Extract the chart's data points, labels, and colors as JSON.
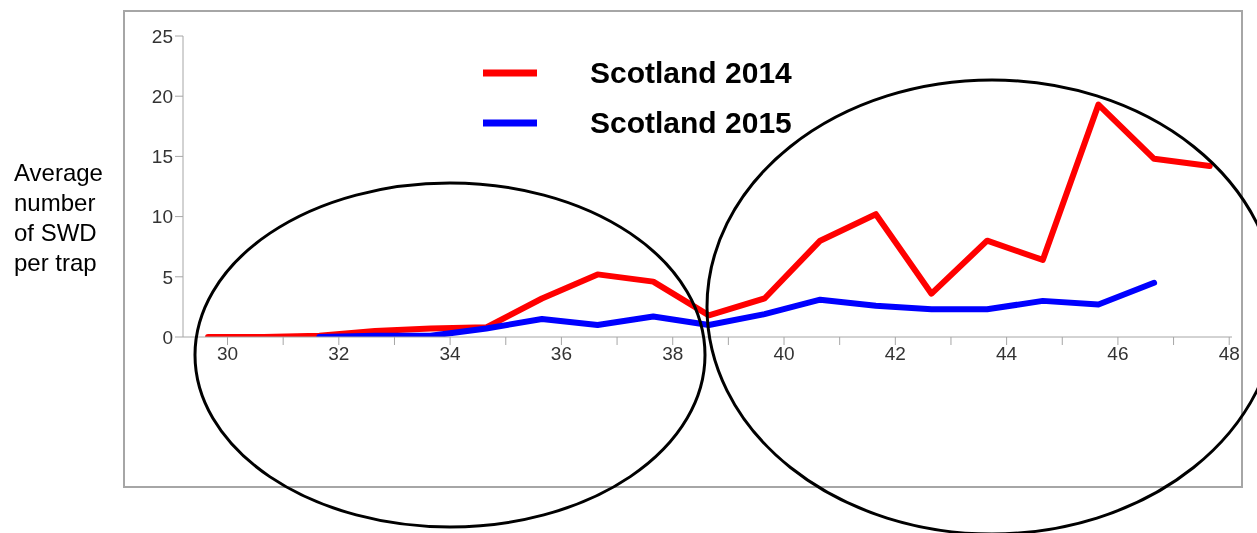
{
  "chart_data": {
    "type": "line",
    "ylabel": "Average number of SWD per trap",
    "x": [
      29.65,
      30.65,
      31.65,
      32.65,
      33.65,
      34.65,
      35.65,
      36.65,
      37.65,
      38.65,
      39.65,
      40.65,
      41.65,
      42.65,
      43.65,
      44.65,
      45.65,
      46.65,
      47.65
    ],
    "series": [
      {
        "name": "Scotland 2014",
        "color": "#ff0000",
        "values": [
          0,
          0,
          0.1,
          0.5,
          0.7,
          0.8,
          3.2,
          5.2,
          4.6,
          1.8,
          3.2,
          8.0,
          10.2,
          3.6,
          8.0,
          6.4,
          19.3,
          14.8,
          14.2
        ]
      },
      {
        "name": "Scotland 2015",
        "color": "#0000ff",
        "values": [
          null,
          null,
          0,
          0.1,
          0.1,
          0.7,
          1.5,
          1.0,
          1.7,
          1.0,
          1.9,
          3.1,
          2.6,
          2.3,
          2.3,
          3.0,
          2.7,
          4.5,
          null
        ]
      }
    ],
    "xlim": [
      29.2,
      48.05
    ],
    "xticks": [
      30,
      {
        "value": 31,
        "label": null
      },
      32,
      {
        "value": 33,
        "label": null
      },
      34,
      {
        "value": 35,
        "label": null
      },
      36,
      {
        "value": 37,
        "label": null
      },
      38,
      {
        "value": 39,
        "label": null
      },
      40,
      {
        "value": 41,
        "label": null
      },
      42,
      {
        "value": 43,
        "label": null
      },
      44,
      {
        "value": 45,
        "label": null
      },
      46,
      {
        "value": 47,
        "label": null
      },
      48
    ],
    "ylim": [
      0,
      25
    ],
    "yticks": [
      0,
      5,
      10,
      15,
      20,
      25
    ],
    "grid": false,
    "legend": "top",
    "marker": "none",
    "line_style": "solid"
  }
}
